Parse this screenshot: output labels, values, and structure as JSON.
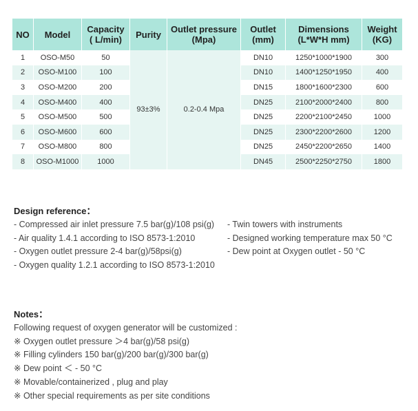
{
  "table": {
    "headers": [
      "NO",
      "Model",
      "Capacity\n( L/min)",
      "Purity",
      "Outlet pressure\n(Mpa)",
      "Outlet\n(mm)",
      "Dimensions\n(L*W*H mm)",
      "Weight\n(KG)"
    ],
    "purity": "93±3%",
    "pressure": "0.2-0.4 Mpa",
    "rows": [
      [
        "1",
        "OSO-M50",
        "50",
        "DN10",
        "1250*1000*1900",
        "300"
      ],
      [
        "2",
        "OSO-M100",
        "100",
        "DN10",
        "1400*1250*1950",
        "400"
      ],
      [
        "3",
        "OSO-M200",
        "200",
        "DN15",
        "1800*1600*2300",
        "600"
      ],
      [
        "4",
        "OSO-M400",
        "400",
        "DN25",
        "2100*2000*2400",
        "800"
      ],
      [
        "5",
        "OSO-M500",
        "500",
        "DN25",
        "2200*2100*2450",
        "1000"
      ],
      [
        "6",
        "OSO-M600",
        "600",
        "DN25",
        "2300*2200*2600",
        "1200"
      ],
      [
        "7",
        "OSO-M800",
        "800",
        "DN25",
        "2450*2200*2650",
        "1400"
      ],
      [
        "8",
        "OSO-M1000",
        "1000",
        "DN45",
        "2500*2250*2750",
        "1800"
      ]
    ]
  },
  "design": {
    "title": "Design reference：",
    "left": [
      "-  Compressed air inlet pressure 7.5 bar(g)/108 psi(g)",
      "-   Air quality 1.4.1 according to ISO 8573-1:2010",
      "-   Oxygen outlet pressure 2-4 bar(g)/58psi(g)",
      "-   Oxygen quality 1.2.1 according to ISO 8573-1:2010"
    ],
    "right": [
      "-  Twin towers with instruments",
      "-  Designed working temperature max 50 °C",
      "-  Dew point at Oxygen outlet - 50 °C"
    ]
  },
  "notes": {
    "title": "Notes：",
    "intro": "Following request of oxygen generator will be  customized :",
    "items": [
      "※ Oxygen outlet pressure ＞4 bar(g)/58 psi(g)",
      "※ Filling cylinders 150 bar(g)/200 bar(g)/300 bar(g)",
      "※ Dew point ＜ - 50 °C",
      "※ Movable/containerized , plug and play",
      "※ Other special requirements as per site conditions"
    ]
  }
}
